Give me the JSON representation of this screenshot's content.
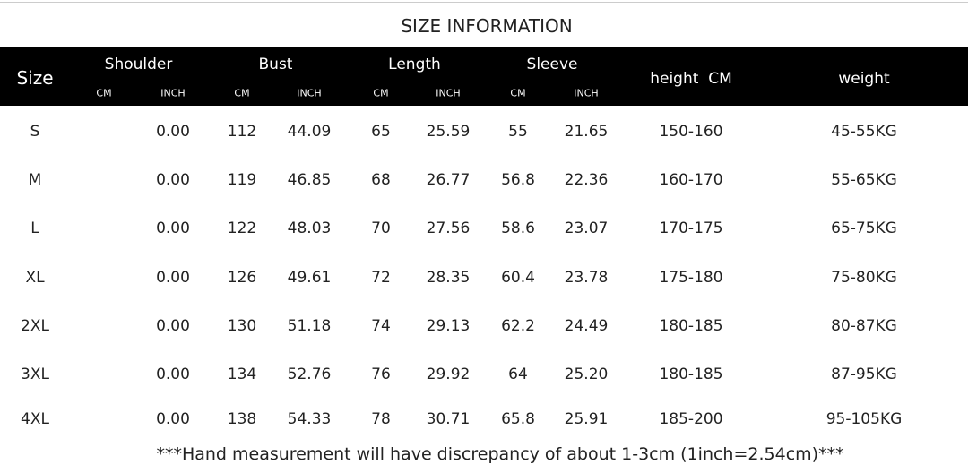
{
  "title": "SIZE INFORMATION",
  "header": {
    "size": "Size",
    "groups": [
      {
        "label": "Shoulder",
        "units": [
          "CM",
          "INCH"
        ]
      },
      {
        "label": "Bust",
        "units": [
          "CM",
          "INCH"
        ]
      },
      {
        "label": "Length",
        "units": [
          "CM",
          "INCH"
        ]
      },
      {
        "label": "Sleeve",
        "units": [
          "CM",
          "INCH"
        ]
      }
    ],
    "height": "height  CM",
    "weight": "weight"
  },
  "table": {
    "rows": [
      [
        "S",
        "0.00",
        "112",
        "44.09",
        "65",
        "25.59",
        "55",
        "21.65",
        "150-160",
        "45-55KG"
      ],
      [
        "M",
        "0.00",
        "119",
        "46.85",
        "68",
        "26.77",
        "56.8",
        "22.36",
        "160-170",
        "55-65KG"
      ],
      [
        "L",
        "0.00",
        "122",
        "48.03",
        "70",
        "27.56",
        "58.6",
        "23.07",
        "170-175",
        "65-75KG"
      ],
      [
        "XL",
        "0.00",
        "126",
        "49.61",
        "72",
        "28.35",
        "60.4",
        "23.78",
        "175-180",
        "75-80KG"
      ],
      [
        "2XL",
        "0.00",
        "130",
        "51.18",
        "74",
        "29.13",
        "62.2",
        "24.49",
        "180-185",
        "80-87KG"
      ],
      [
        "3XL",
        "0.00",
        "134",
        "52.76",
        "76",
        "29.92",
        "64",
        "25.20",
        "180-185",
        "87-95KG"
      ],
      [
        "4XL",
        "0.00",
        "138",
        "54.33",
        "78",
        "30.71",
        "65.8",
        "25.91",
        "185-200",
        "95-105KG"
      ]
    ]
  },
  "footer": "***Hand measurement will have discrepancy of about 1-3cm (1inch=2.54cm)***"
}
